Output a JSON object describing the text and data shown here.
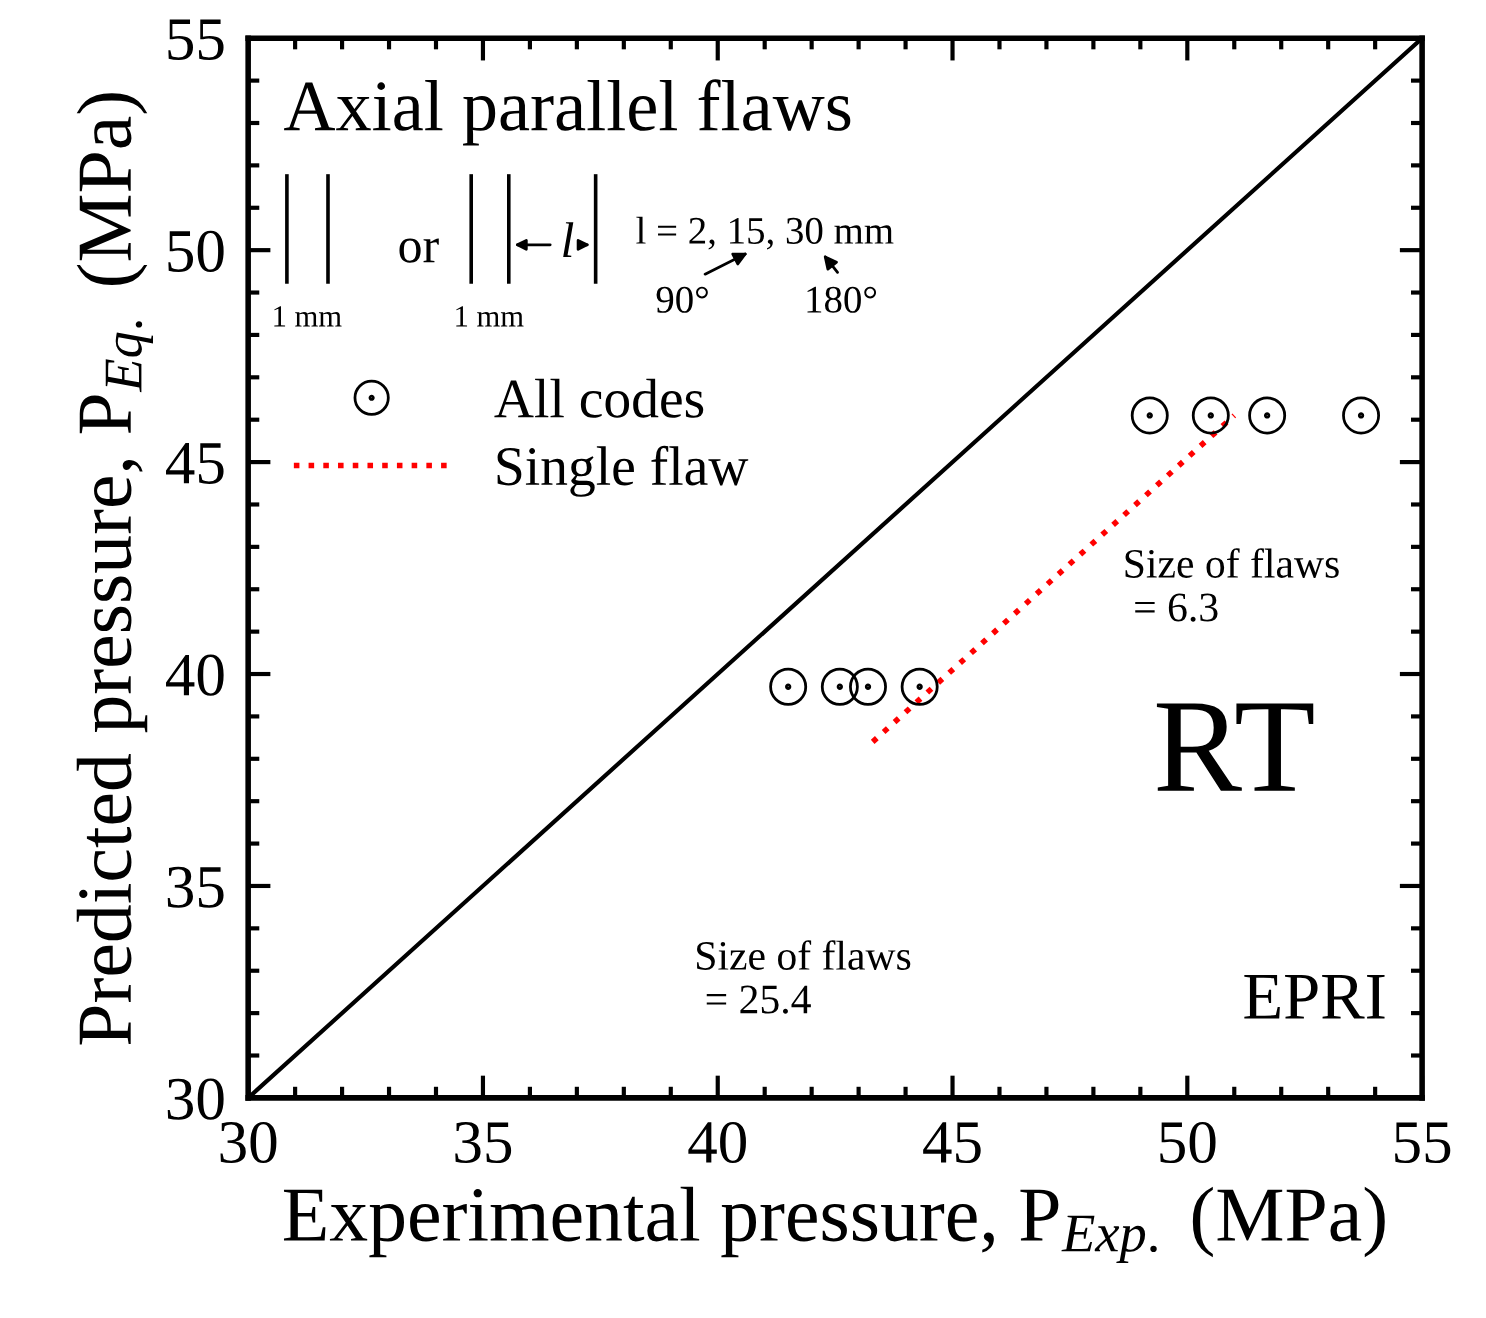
{
  "chart_data": {
    "type": "scatter",
    "xlabel": "Experimental pressure, P$_{Exp.}$ (MPa)",
    "ylabel": "Predicted pressure, P$_{Eq.}$ (MPa)",
    "xlim": [
      30,
      55
    ],
    "ylim": [
      30,
      55
    ],
    "xticks": [
      30,
      35,
      40,
      45,
      50,
      55
    ],
    "yticks": [
      30,
      35,
      40,
      45,
      50,
      55
    ],
    "grid": false,
    "legend": "top left",
    "series": [
      {
        "name": "All codes",
        "marker": "circle",
        "color": "#000000",
        "x": [
          41.5,
          42.6,
          43.2,
          44.3,
          49.2,
          50.5,
          51.7,
          53.7
        ],
        "values": [
          39.7,
          39.7,
          39.7,
          39.7,
          46.1,
          46.1,
          46.1,
          46.1
        ]
      },
      {
        "name": "Single flaw",
        "type": "line",
        "line_style": "dotted",
        "color": "#ff0000",
        "x": [
          43.3,
          51.0
        ],
        "values": [
          38.4,
          46.1
        ]
      },
      {
        "type": "line",
        "line_style": "solid",
        "color": "#000000",
        "x": [
          30,
          55
        ],
        "values": [
          30,
          55
        ]
      }
    ],
    "annotations": [
      "Axial parallel flaws",
      "or",
      "1 mm",
      "1 mm",
      "l",
      "l = 2, 15, 30 mm",
      "90°",
      "180°",
      "Size of flaws\n = 6.3",
      "Size of flaws\n = 25.4",
      "RT",
      "EPRI"
    ]
  }
}
